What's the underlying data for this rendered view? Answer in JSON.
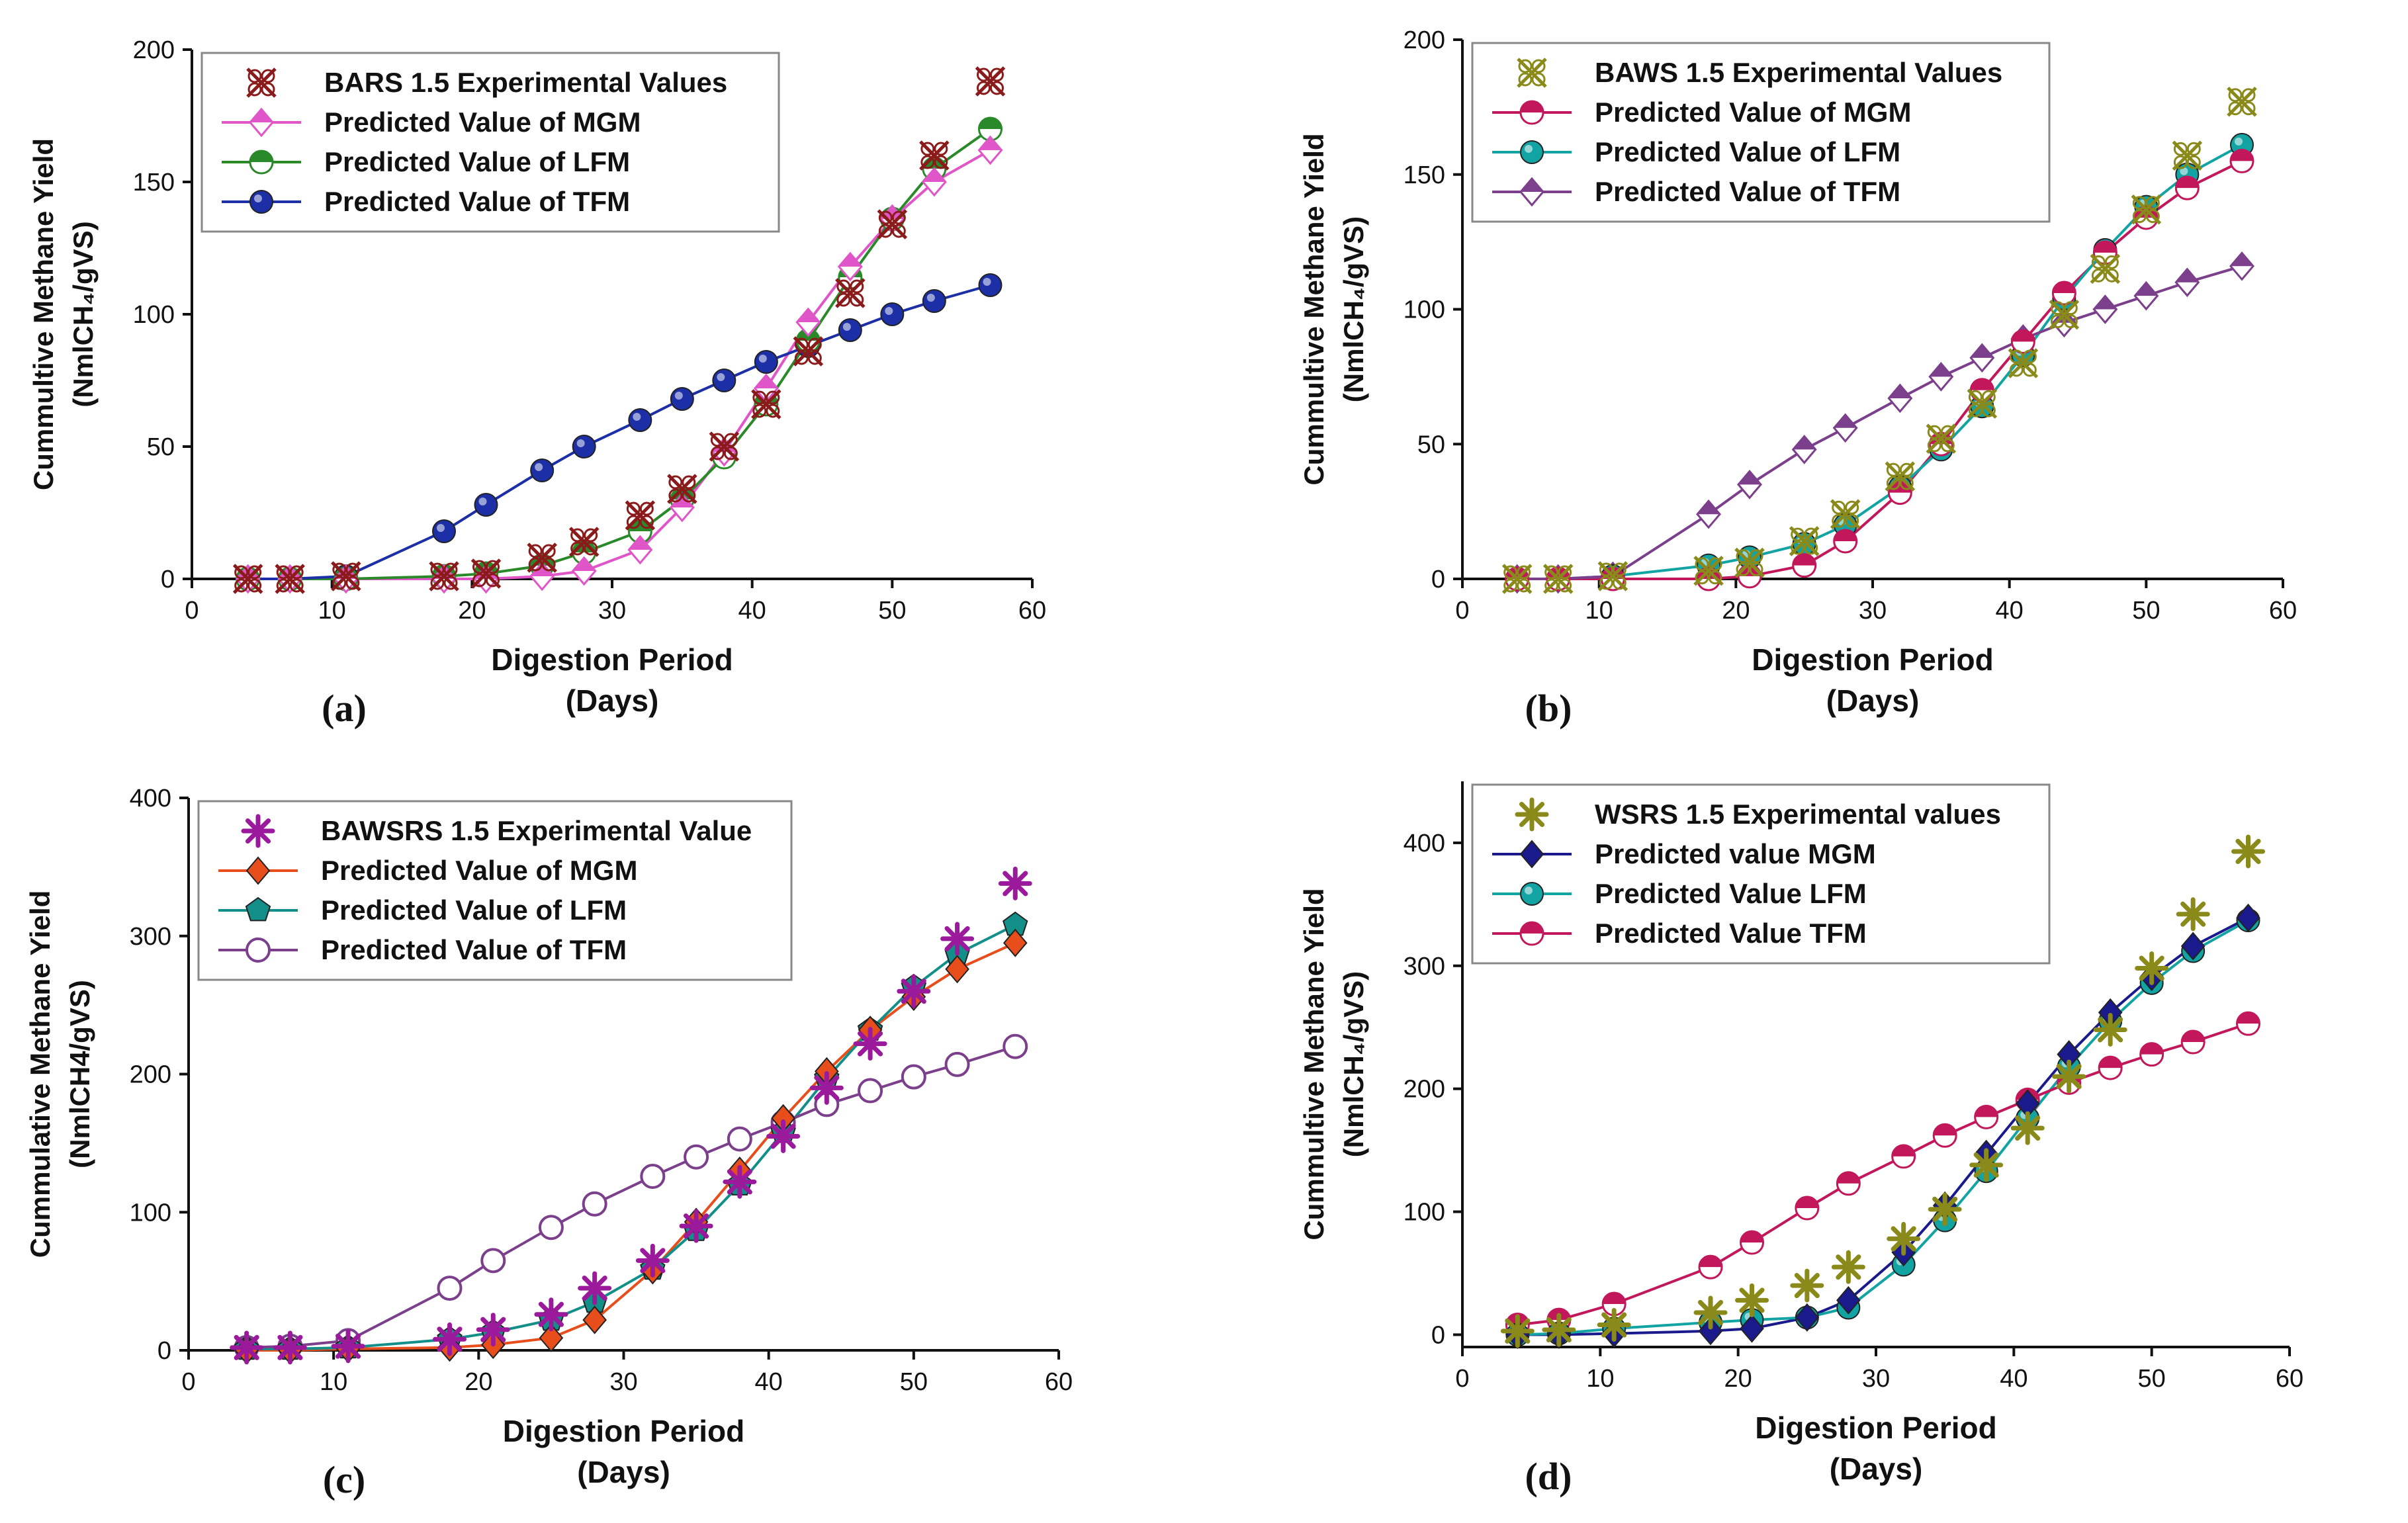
{
  "chart_data": [
    {
      "type": "line",
      "panel_label": "(a)",
      "xlabel": "Digestion Period",
      "xlabel2": "(Days)",
      "ylabel": "Cummultive Methane Yield",
      "ylabel2": "(NmlCH₄/gVS)",
      "xlim": [
        0,
        60
      ],
      "ylim": [
        0,
        200
      ],
      "xticks": [
        0,
        10,
        20,
        30,
        40,
        50,
        60
      ],
      "yticks": [
        0,
        50,
        100,
        150,
        200
      ],
      "legend_position": "top-left",
      "series": [
        {
          "name": "BARS 1.5 Experimental Values",
          "color": "#8b1a1a",
          "marker": "xcircle",
          "line": false,
          "x": [
            4,
            7,
            11,
            18,
            21,
            25,
            28,
            32,
            35,
            38,
            41,
            44,
            47,
            50,
            53,
            57
          ],
          "y": [
            0,
            0,
            1,
            1,
            2,
            8,
            14,
            24,
            34,
            50,
            66,
            86,
            108,
            134,
            160,
            188
          ]
        },
        {
          "name": "Predicted Value of MGM",
          "color": "#e055c8",
          "marker": "half-diamond",
          "line": true,
          "x": [
            4,
            7,
            11,
            18,
            21,
            25,
            28,
            32,
            35,
            38,
            41,
            44,
            47,
            50,
            53,
            57
          ],
          "y": [
            0,
            0,
            0,
            0,
            0,
            1,
            3,
            11,
            27,
            48,
            72,
            97,
            118,
            136,
            150,
            162
          ]
        },
        {
          "name": "Predicted Value of LFM",
          "color": "#2a8a2a",
          "marker": "half-circle",
          "line": true,
          "x": [
            4,
            7,
            11,
            18,
            21,
            25,
            28,
            32,
            35,
            38,
            41,
            44,
            47,
            50,
            53,
            57
          ],
          "y": [
            0,
            0,
            0,
            1,
            2,
            5,
            10,
            18,
            30,
            46,
            66,
            90,
            114,
            136,
            155,
            170
          ]
        },
        {
          "name": "Predicted Value of TFM",
          "color": "#1c2fa6",
          "marker": "circle",
          "line": true,
          "x": [
            4,
            7,
            11,
            18,
            21,
            25,
            28,
            32,
            35,
            38,
            41,
            44,
            47,
            50,
            53,
            57
          ],
          "y": [
            0,
            0,
            1,
            18,
            28,
            41,
            50,
            60,
            68,
            75,
            82,
            88,
            94,
            100,
            105,
            111
          ]
        }
      ]
    },
    {
      "type": "line",
      "panel_label": "(b)",
      "xlabel": "Digestion Period",
      "xlabel2": "(Days)",
      "ylabel": "Cummultive Methane Yield",
      "ylabel2": "(NmlCH₄/gVS)",
      "xlim": [
        0,
        60
      ],
      "ylim": [
        0,
        200
      ],
      "xticks": [
        0,
        10,
        20,
        30,
        40,
        50,
        60
      ],
      "yticks": [
        0,
        50,
        100,
        150,
        200
      ],
      "legend_position": "top-left",
      "series": [
        {
          "name": "BAWS 1.5 Experimental Values",
          "color": "#8a8a1a",
          "marker": "xcircle",
          "line": false,
          "x": [
            4,
            7,
            11,
            18,
            21,
            25,
            28,
            32,
            35,
            38,
            41,
            44,
            47,
            50,
            53,
            57
          ],
          "y": [
            0,
            0,
            1,
            3,
            6,
            14,
            24,
            38,
            52,
            65,
            80,
            98,
            115,
            137,
            157,
            177
          ]
        },
        {
          "name": "Predicted Value of MGM",
          "color": "#c2185b",
          "marker": "half-circle",
          "line": true,
          "x": [
            4,
            7,
            11,
            18,
            21,
            25,
            28,
            32,
            35,
            38,
            41,
            44,
            47,
            50,
            53,
            57
          ],
          "y": [
            0,
            0,
            0,
            0,
            1,
            5,
            14,
            32,
            50,
            70,
            88,
            106,
            121,
            134,
            145,
            155
          ]
        },
        {
          "name": "Predicted Value of LFM",
          "color": "#12a3a3",
          "marker": "circle",
          "line": true,
          "x": [
            4,
            7,
            11,
            18,
            21,
            25,
            28,
            32,
            35,
            38,
            41,
            44,
            47,
            50,
            53,
            57
          ],
          "y": [
            0,
            0,
            1,
            5,
            8,
            13,
            20,
            34,
            48,
            64,
            83,
            104,
            122,
            138,
            150,
            161
          ]
        },
        {
          "name": "Predicted Value of TFM",
          "color": "#7b3f8c",
          "marker": "half-diamond",
          "line": true,
          "x": [
            4,
            7,
            11,
            18,
            21,
            25,
            28,
            32,
            35,
            38,
            41,
            44,
            47,
            50,
            53,
            57
          ],
          "y": [
            0,
            0,
            1,
            24,
            35,
            48,
            56,
            67,
            75,
            82,
            89,
            95,
            100,
            105,
            110,
            116
          ]
        }
      ]
    },
    {
      "type": "line",
      "panel_label": "(c)",
      "xlabel": "Digestion Period",
      "xlabel2": "(Days)",
      "ylabel": "Cummulative Methane Yield",
      "ylabel2": "(NmlCH4/gVS)",
      "xlim": [
        0,
        60
      ],
      "ylim": [
        0,
        400
      ],
      "xticks": [
        0,
        10,
        20,
        30,
        40,
        50,
        60
      ],
      "yticks": [
        0,
        100,
        200,
        300,
        400
      ],
      "legend_position": "top-left",
      "series": [
        {
          "name": "BAWSRS 1.5 Experimental Value",
          "color": "#9b1a9b",
          "marker": "asterisk",
          "line": false,
          "x": [
            4,
            7,
            11,
            18,
            21,
            25,
            28,
            32,
            35,
            38,
            41,
            44,
            47,
            50,
            53,
            57
          ],
          "y": [
            2,
            2,
            3,
            8,
            15,
            26,
            45,
            65,
            90,
            122,
            155,
            190,
            222,
            260,
            298,
            338
          ]
        },
        {
          "name": "Predicted Value of MGM",
          "color": "#e84e1b",
          "marker": "diamond",
          "line": true,
          "x": [
            4,
            7,
            11,
            18,
            21,
            25,
            28,
            32,
            35,
            38,
            41,
            44,
            47,
            50,
            53,
            57
          ],
          "y": [
            0,
            0,
            1,
            2,
            4,
            9,
            22,
            58,
            93,
            130,
            168,
            202,
            232,
            256,
            276,
            295
          ]
        },
        {
          "name": "Predicted Value of LFM",
          "color": "#138f8a",
          "marker": "pentagon",
          "line": true,
          "x": [
            4,
            7,
            11,
            18,
            21,
            25,
            28,
            32,
            35,
            38,
            41,
            44,
            47,
            50,
            53,
            57
          ],
          "y": [
            1,
            1,
            2,
            8,
            13,
            22,
            35,
            59,
            87,
            120,
            158,
            197,
            232,
            263,
            287,
            308
          ]
        },
        {
          "name": "Predicted Value of TFM",
          "color": "#7b3f8c",
          "marker": "circle-open",
          "line": true,
          "x": [
            4,
            7,
            11,
            18,
            21,
            25,
            28,
            32,
            35,
            38,
            41,
            44,
            47,
            50,
            53,
            57
          ],
          "y": [
            2,
            3,
            7,
            45,
            65,
            89,
            106,
            126,
            140,
            153,
            165,
            178,
            188,
            198,
            207,
            220
          ]
        }
      ]
    },
    {
      "type": "line",
      "panel_label": "(d)",
      "xlabel": "Digestion Period",
      "xlabel2": "(Days)",
      "ylabel": "Cummultive Methane Yield",
      "ylabel2": "(NmlCH₄/gVS)",
      "xlim": [
        0,
        60
      ],
      "ylim": [
        -10,
        450
      ],
      "xticks": [
        0,
        10,
        20,
        30,
        40,
        50,
        60
      ],
      "yticks": [
        0,
        100,
        200,
        300,
        400
      ],
      "legend_position": "top-left",
      "series": [
        {
          "name": "WSRS 1.5 Experimental values",
          "color": "#8a8a1a",
          "marker": "asterisk",
          "line": false,
          "x": [
            4,
            7,
            11,
            18,
            21,
            25,
            28,
            32,
            35,
            38,
            41,
            44,
            47,
            50,
            53,
            57
          ],
          "y": [
            3,
            4,
            8,
            18,
            28,
            40,
            55,
            78,
            102,
            138,
            168,
            210,
            248,
            298,
            342,
            393
          ]
        },
        {
          "name": "Predicted value MGM",
          "color": "#1a1a8c",
          "marker": "diamond",
          "line": true,
          "x": [
            4,
            7,
            11,
            18,
            21,
            25,
            28,
            32,
            35,
            38,
            41,
            44,
            47,
            50,
            53,
            57
          ],
          "y": [
            0,
            0,
            1,
            3,
            5,
            14,
            28,
            67,
            105,
            147,
            188,
            228,
            262,
            291,
            316,
            339
          ]
        },
        {
          "name": "Predicted Value LFM",
          "color": "#12a3a3",
          "marker": "circle",
          "line": true,
          "x": [
            4,
            7,
            11,
            18,
            21,
            25,
            28,
            32,
            35,
            38,
            41,
            44,
            47,
            50,
            53,
            57
          ],
          "y": [
            0,
            1,
            5,
            10,
            12,
            14,
            22,
            57,
            93,
            133,
            176,
            218,
            255,
            286,
            312,
            337
          ]
        },
        {
          "name": "Predicted Value TFM",
          "color": "#c2185b",
          "marker": "half-circle",
          "line": true,
          "x": [
            4,
            7,
            11,
            18,
            21,
            25,
            28,
            32,
            35,
            38,
            41,
            44,
            47,
            50,
            53,
            57
          ],
          "y": [
            8,
            12,
            25,
            55,
            75,
            103,
            123,
            145,
            162,
            177,
            191,
            205,
            217,
            228,
            238,
            253
          ]
        }
      ]
    }
  ]
}
